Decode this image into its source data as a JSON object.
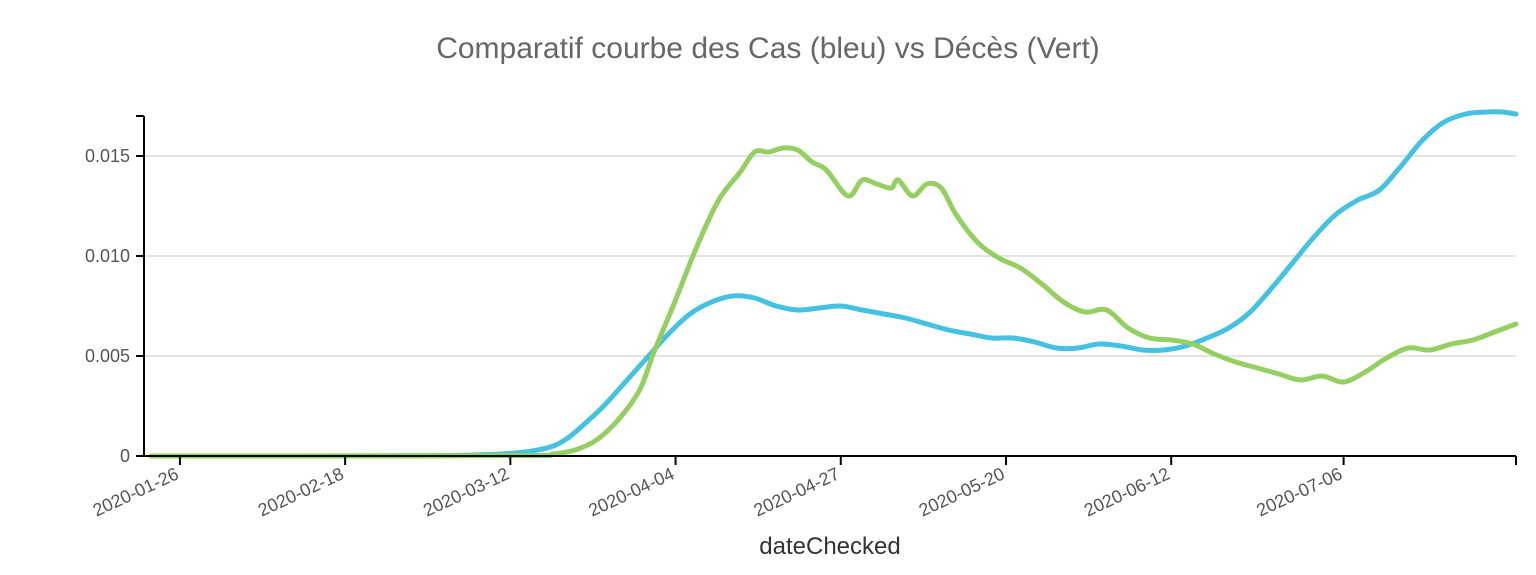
{
  "chart_data": {
    "type": "line",
    "title": "Comparatif courbe des Cas (bleu) vs Décès (Vert)",
    "xlabel": "dateChecked",
    "ylabel": "",
    "ylim": [
      0,
      0.017
    ],
    "xlim": [
      "2020-01-21",
      "2020-07-30"
    ],
    "grid": "horizontal",
    "x_ticks": [
      "2020-01-26",
      "2020-02-18",
      "2020-03-12",
      "2020-04-04",
      "2020-04-27",
      "2020-05-20",
      "2020-06-12",
      "2020-07-06"
    ],
    "y_ticks": [
      {
        "value": 0,
        "label": "0"
      },
      {
        "value": 0.005,
        "label": "0.005"
      },
      {
        "value": 0.01,
        "label": "0.010"
      },
      {
        "value": 0.015,
        "label": "0.015"
      }
    ],
    "series": [
      {
        "color": "#45c1e2",
        "x": [
          "2020-01-22",
          "2020-02-10",
          "2020-03-01",
          "2020-03-08",
          "2020-03-12",
          "2020-03-15",
          "2020-03-18",
          "2020-03-20",
          "2020-03-22",
          "2020-03-25",
          "2020-03-28",
          "2020-03-31",
          "2020-04-03",
          "2020-04-06",
          "2020-04-09",
          "2020-04-12",
          "2020-04-15",
          "2020-04-18",
          "2020-04-21",
          "2020-04-24",
          "2020-04-27",
          "2020-04-30",
          "2020-05-03",
          "2020-05-06",
          "2020-05-09",
          "2020-05-12",
          "2020-05-15",
          "2020-05-18",
          "2020-05-21",
          "2020-05-24",
          "2020-05-27",
          "2020-05-30",
          "2020-06-02",
          "2020-06-05",
          "2020-06-08",
          "2020-06-11",
          "2020-06-14",
          "2020-06-17",
          "2020-06-20",
          "2020-06-23",
          "2020-06-26",
          "2020-06-29",
          "2020-07-02",
          "2020-07-05",
          "2020-07-08",
          "2020-07-11",
          "2020-07-14",
          "2020-07-17",
          "2020-07-20",
          "2020-07-23",
          "2020-07-26",
          "2020-07-28",
          "2020-07-30"
        ],
        "values": [
          0,
          0,
          2e-05,
          6e-05,
          0.00013,
          0.00025,
          0.0005,
          0.0009,
          0.0015,
          0.0025,
          0.0037,
          0.0049,
          0.0061,
          0.0071,
          0.0077,
          0.008,
          0.0079,
          0.0075,
          0.0073,
          0.0074,
          0.0075,
          0.0073,
          0.0071,
          0.0069,
          0.0066,
          0.0063,
          0.0061,
          0.0059,
          0.0059,
          0.0057,
          0.0054,
          0.0054,
          0.0056,
          0.0055,
          0.0053,
          0.0053,
          0.0055,
          0.0059,
          0.0064,
          0.0072,
          0.0084,
          0.0097,
          0.011,
          0.0121,
          0.0128,
          0.0133,
          0.0145,
          0.0158,
          0.0167,
          0.0171,
          0.0172,
          0.0172,
          0.0171
        ]
      },
      {
        "color": "#96cf61",
        "x": [
          "2020-01-22",
          "2020-02-20",
          "2020-03-15",
          "2020-03-18",
          "2020-03-21",
          "2020-03-24",
          "2020-03-27",
          "2020-03-30",
          "2020-04-01",
          "2020-04-04",
          "2020-04-07",
          "2020-04-10",
          "2020-04-13",
          "2020-04-15",
          "2020-04-17",
          "2020-04-19",
          "2020-04-21",
          "2020-04-23",
          "2020-04-25",
          "2020-04-28",
          "2020-04-30",
          "2020-05-02",
          "2020-05-04",
          "2020-05-05",
          "2020-05-07",
          "2020-05-09",
          "2020-05-11",
          "2020-05-13",
          "2020-05-16",
          "2020-05-19",
          "2020-05-22",
          "2020-05-25",
          "2020-05-28",
          "2020-05-31",
          "2020-06-03",
          "2020-06-06",
          "2020-06-09",
          "2020-06-12",
          "2020-06-15",
          "2020-06-18",
          "2020-06-21",
          "2020-06-24",
          "2020-06-27",
          "2020-06-30",
          "2020-07-03",
          "2020-07-06",
          "2020-07-09",
          "2020-07-12",
          "2020-07-15",
          "2020-07-18",
          "2020-07-21",
          "2020-07-24",
          "2020-07-27",
          "2020-07-30"
        ],
        "values": [
          0,
          0,
          2e-05,
          0.0001,
          0.0003,
          0.0008,
          0.0018,
          0.0033,
          0.0052,
          0.0078,
          0.0105,
          0.0128,
          0.0142,
          0.0152,
          0.0152,
          0.0154,
          0.0153,
          0.0147,
          0.0143,
          0.013,
          0.0138,
          0.0136,
          0.0134,
          0.0138,
          0.013,
          0.0136,
          0.0134,
          0.0121,
          0.0107,
          0.0099,
          0.0094,
          0.0086,
          0.0077,
          0.0072,
          0.0073,
          0.0064,
          0.0059,
          0.0058,
          0.0056,
          0.0051,
          0.0047,
          0.0044,
          0.0041,
          0.0038,
          0.004,
          0.0037,
          0.0042,
          0.0049,
          0.0054,
          0.0053,
          0.0056,
          0.0058,
          0.0062,
          0.0066
        ]
      }
    ]
  }
}
